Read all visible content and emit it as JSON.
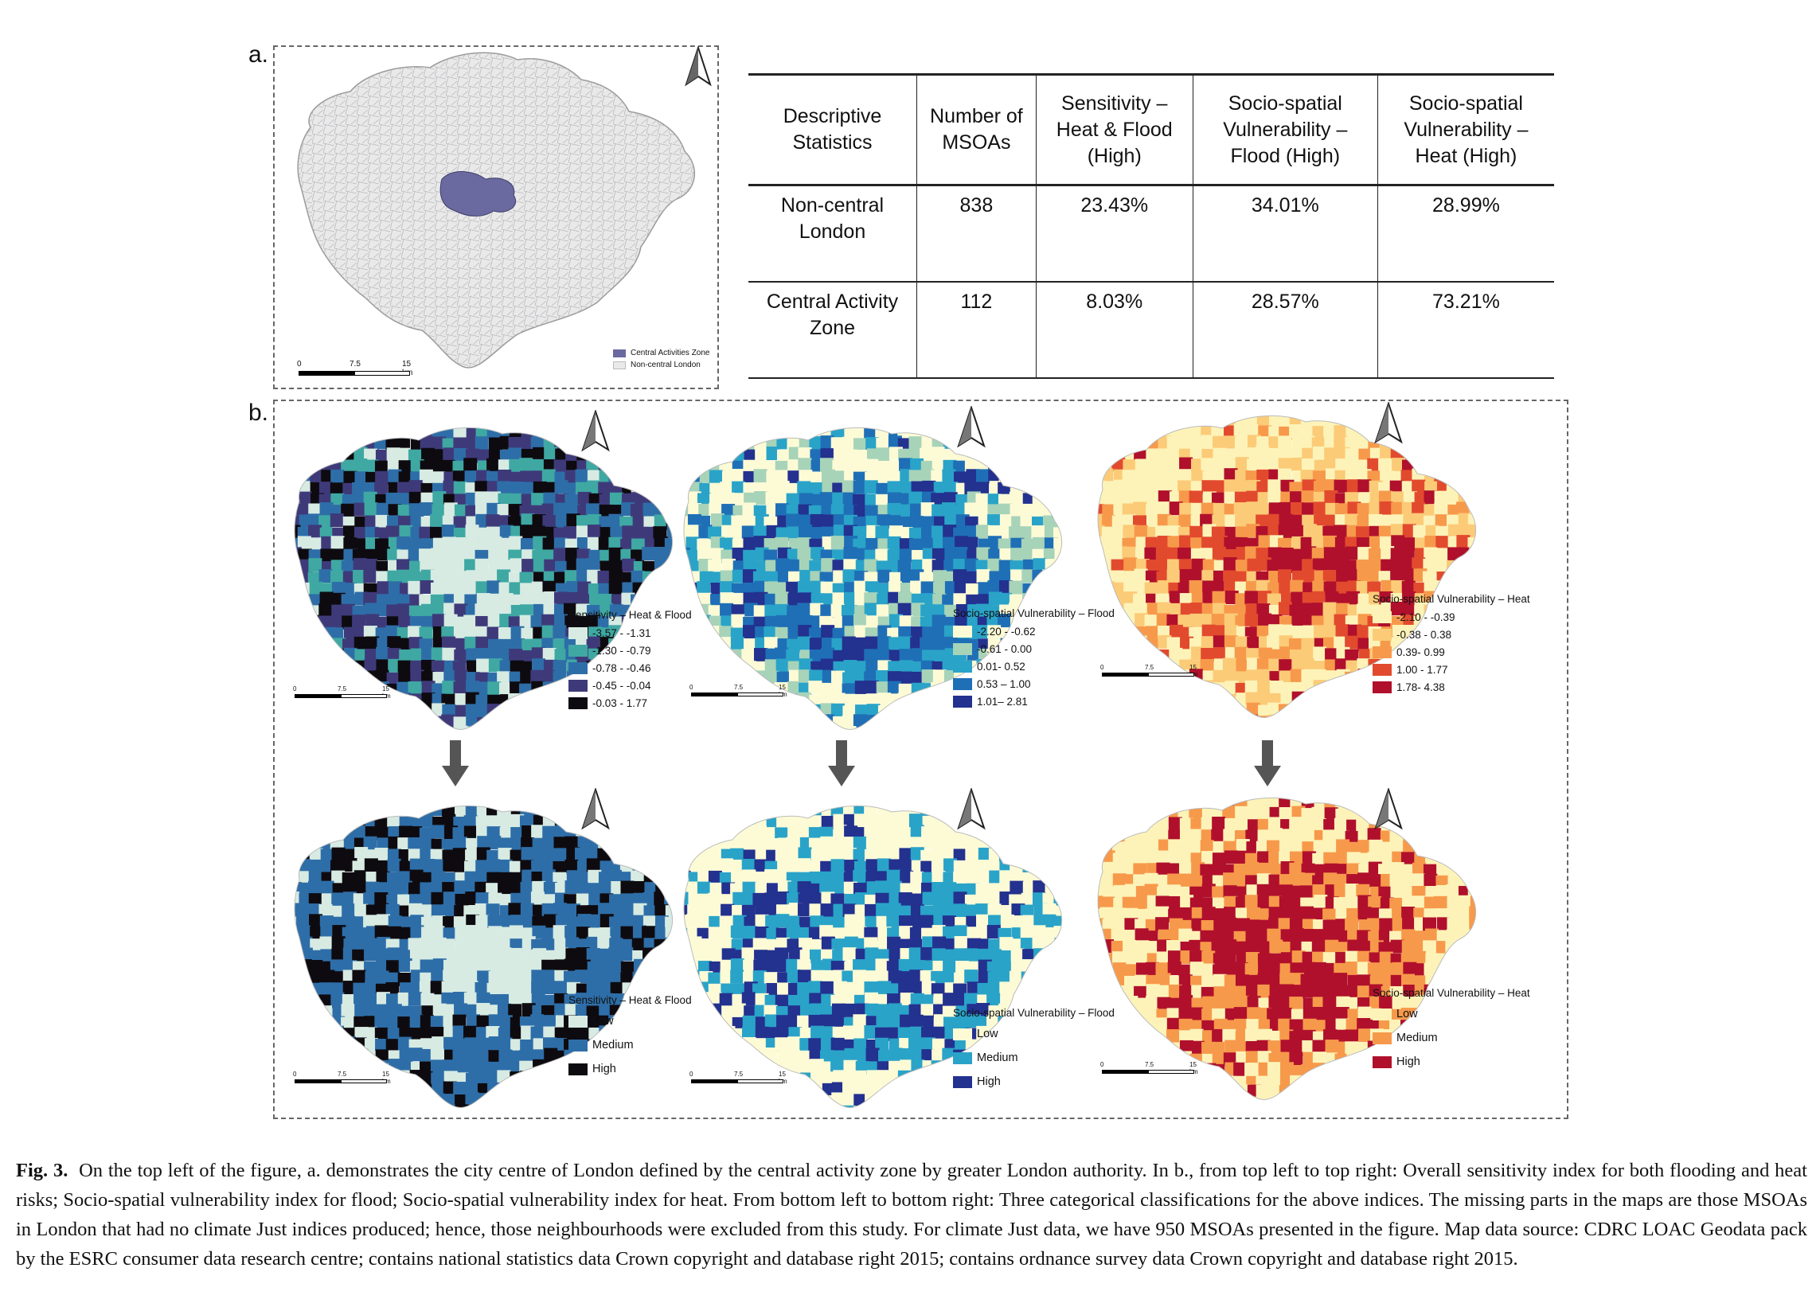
{
  "panel_a": {
    "label": "a.",
    "legend": [
      {
        "label": "Central Activities Zone",
        "color": "#6b6aa0"
      },
      {
        "label": "Non-central London",
        "color": "#e9e9ea"
      }
    ],
    "scale": {
      "zero": "0",
      "mid": "7.5",
      "end": "15 km"
    }
  },
  "table": {
    "headers": [
      "Descriptive Statistics",
      "Number of MSOAs",
      "Sensitivity – Heat & Flood (High)",
      "Socio-spatial Vulnerability – Flood (High)",
      "Socio-spatial Vulnerability – Heat (High)"
    ],
    "rows": [
      [
        "Non-central London",
        "838",
        "23.43%",
        "34.01%",
        "28.99%"
      ],
      [
        "Central Activity Zone",
        "112",
        "8.03%",
        "28.57%",
        "73.21%"
      ]
    ]
  },
  "panel_b": {
    "label": "b.",
    "scale": {
      "zero": "0",
      "mid": "7.5",
      "end": "15 km"
    },
    "top_maps": [
      {
        "title": "Sensitivity – Heat & Flood",
        "classes": [
          {
            "label": "-3.57 - -1.31",
            "color": "#d7ebe3"
          },
          {
            "label": "-1.30 - -0.79",
            "color": "#3fa8a3"
          },
          {
            "label": "-0.78 - -0.46",
            "color": "#2e6ea8"
          },
          {
            "label": "-0.45 - -0.04",
            "color": "#3e3a7a"
          },
          {
            "label": "-0.03 - 1.77",
            "color": "#0e0b10"
          }
        ]
      },
      {
        "title": "Socio-spatial Vulnerability – Flood",
        "classes": [
          {
            "label": "-2.20 - -0.62",
            "color": "#fdfbd6"
          },
          {
            "label": "-0.61 - 0.00",
            "color": "#a7d3b9"
          },
          {
            "label": "0.01- 0.52",
            "color": "#2aa3c8"
          },
          {
            "label": "0.53 – 1.00",
            "color": "#1f6fb6"
          },
          {
            "label": "1.01– 2.81",
            "color": "#23318f"
          }
        ]
      },
      {
        "title": "Socio-spatial Vulnerability – Heat",
        "classes": [
          {
            "label": "-2.10 - -0.39",
            "color": "#fdf3b8"
          },
          {
            "label": "-0.38 - 0.38",
            "color": "#fccb78"
          },
          {
            "label": "0.39- 0.99",
            "color": "#f7994b"
          },
          {
            "label": "1.00 - 1.77",
            "color": "#e24a2e"
          },
          {
            "label": "1.78- 4.38",
            "color": "#b0102c"
          }
        ]
      }
    ],
    "bottom_maps": [
      {
        "title": "Sensitivity – Heat & Flood",
        "classes": [
          {
            "label": "Low",
            "color": "#d7ebe3"
          },
          {
            "label": "Medium",
            "color": "#2e6ea8"
          },
          {
            "label": "High",
            "color": "#0e0b10"
          }
        ]
      },
      {
        "title": "Socio-spatial Vulnerability – Flood",
        "classes": [
          {
            "label": "Low",
            "color": "#fdfbd6"
          },
          {
            "label": "Medium",
            "color": "#2aa3c8"
          },
          {
            "label": "High",
            "color": "#23318f"
          }
        ]
      },
      {
        "title": "Socio-spatial Vulnerability – Heat",
        "classes": [
          {
            "label": "Low",
            "color": "#fdf3b8"
          },
          {
            "label": "Medium",
            "color": "#f7994b"
          },
          {
            "label": "High",
            "color": "#b0102c"
          }
        ]
      }
    ]
  },
  "caption": {
    "label": "Fig. 3.",
    "text": "On the top left of the figure, a. demonstrates the city centre of London defined by the central activity zone by greater London authority. In b., from top left to top right: Overall sensitivity index for both flooding and heat risks; Socio-spatial vulnerability index for flood; Socio-spatial vulnerability index for heat. From bottom left to bottom right: Three categorical classifications for the above indices. The missing parts in the maps are those MSOAs in London that had no climate Just indices produced; hence, those neighbourhoods were excluded from this study. For climate Just data, we have 950 MSOAs presented in the figure. Map data source: CDRC LOAC Geodata pack by the ESRC consumer data research centre; contains national statistics data Crown copyright and database right 2015; contains ordnance survey data Crown copyright and database right 2015."
  }
}
